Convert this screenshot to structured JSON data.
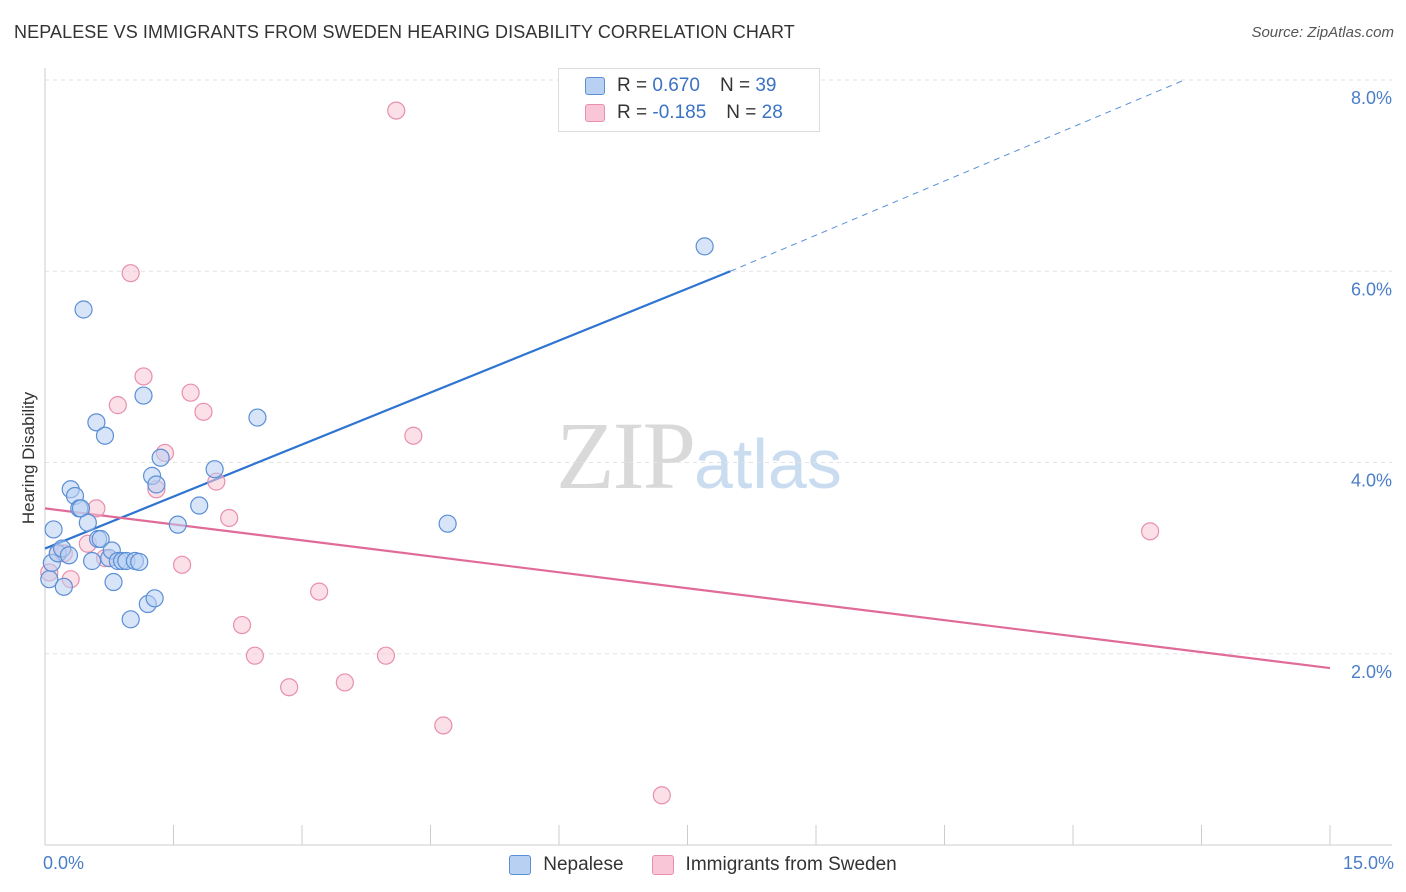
{
  "title": "NEPALESE VS IMMIGRANTS FROM SWEDEN HEARING DISABILITY CORRELATION CHART",
  "source": "Source: ZipAtlas.com",
  "watermark": {
    "zip": "ZIP",
    "atlas": "atlas"
  },
  "legend": {
    "nepalese": {
      "r_label": "R = ",
      "r_value": "0.670",
      "n_label": "N = ",
      "n_value": "39"
    },
    "sweden": {
      "r_label": "R = ",
      "r_value": "-0.185",
      "n_label": "N = ",
      "n_value": "28"
    }
  },
  "colors": {
    "nepalese_fill": "#b8d0f2",
    "nepalese_stroke": "#5b8fd6",
    "nepalese_line": "#2f74d0",
    "sweden_fill": "#f8c6d6",
    "sweden_stroke": "#e88fae",
    "sweden_line": "#e06b98"
  },
  "chart_data": {
    "type": "scatter",
    "title": "NEPALESE VS IMMIGRANTS FROM SWEDEN HEARING DISABILITY CORRELATION CHART",
    "ylabel": "Hearing Disability",
    "xlabel": "",
    "xlim": [
      0,
      15
    ],
    "ylim": [
      0.0,
      8.0
    ],
    "x_ticks_labeled": [
      "0.0%",
      "15.0%"
    ],
    "y_ticks": [
      2.0,
      4.0,
      6.0,
      8.0
    ],
    "y_tick_labels": [
      "2.0%",
      "4.0%",
      "6.0%",
      "8.0%"
    ],
    "grid": true,
    "legend_position": "top-center",
    "series": [
      {
        "name": "Nepalese",
        "points": [
          [
            0.05,
            2.78
          ],
          [
            0.08,
            2.95
          ],
          [
            0.1,
            3.3
          ],
          [
            0.15,
            3.05
          ],
          [
            0.2,
            3.1
          ],
          [
            0.22,
            2.7
          ],
          [
            0.28,
            3.03
          ],
          [
            0.3,
            3.72
          ],
          [
            0.35,
            3.65
          ],
          [
            0.4,
            3.52
          ],
          [
            0.42,
            3.52
          ],
          [
            0.45,
            5.6
          ],
          [
            0.5,
            3.37
          ],
          [
            0.55,
            2.97
          ],
          [
            0.6,
            4.42
          ],
          [
            0.62,
            3.2
          ],
          [
            0.65,
            3.2
          ],
          [
            0.7,
            4.28
          ],
          [
            0.75,
            3.0
          ],
          [
            0.78,
            3.08
          ],
          [
            0.8,
            2.75
          ],
          [
            0.85,
            2.97
          ],
          [
            0.9,
            2.97
          ],
          [
            0.95,
            2.97
          ],
          [
            1.0,
            2.36
          ],
          [
            1.05,
            2.97
          ],
          [
            1.1,
            2.96
          ],
          [
            1.15,
            4.7
          ],
          [
            1.2,
            2.52
          ],
          [
            1.25,
            3.86
          ],
          [
            1.28,
            2.58
          ],
          [
            1.3,
            3.77
          ],
          [
            1.35,
            4.05
          ],
          [
            1.55,
            3.35
          ],
          [
            1.8,
            3.55
          ],
          [
            1.98,
            3.93
          ],
          [
            2.48,
            4.47
          ],
          [
            4.7,
            3.36
          ],
          [
            7.7,
            6.26
          ]
        ]
      },
      {
        "name": "Immigrants from Sweden",
        "points": [
          [
            0.05,
            2.85
          ],
          [
            0.15,
            3.05
          ],
          [
            0.22,
            3.05
          ],
          [
            0.3,
            2.78
          ],
          [
            0.5,
            3.15
          ],
          [
            0.6,
            3.52
          ],
          [
            0.7,
            3.0
          ],
          [
            0.85,
            4.6
          ],
          [
            1.0,
            5.98
          ],
          [
            1.15,
            4.9
          ],
          [
            1.3,
            3.72
          ],
          [
            1.4,
            4.1
          ],
          [
            1.6,
            2.93
          ],
          [
            1.7,
            4.73
          ],
          [
            1.85,
            4.53
          ],
          [
            2.0,
            3.8
          ],
          [
            2.15,
            3.42
          ],
          [
            2.3,
            2.3
          ],
          [
            2.45,
            1.98
          ],
          [
            2.85,
            1.65
          ],
          [
            3.2,
            2.65
          ],
          [
            3.5,
            1.7
          ],
          [
            3.98,
            1.98
          ],
          [
            4.1,
            7.68
          ],
          [
            4.3,
            4.28
          ],
          [
            4.65,
            1.25
          ],
          [
            7.2,
            0.52
          ],
          [
            12.9,
            3.28
          ]
        ]
      }
    ],
    "trendlines": [
      {
        "series": "Nepalese",
        "solid": [
          [
            0.0,
            3.1
          ],
          [
            8.0,
            6.0
          ]
        ],
        "dashed": [
          [
            8.0,
            6.0
          ],
          [
            13.3,
            8.0
          ]
        ]
      },
      {
        "series": "Immigrants from Sweden",
        "solid": [
          [
            0.0,
            3.52
          ],
          [
            15.0,
            1.85
          ]
        ]
      }
    ]
  }
}
